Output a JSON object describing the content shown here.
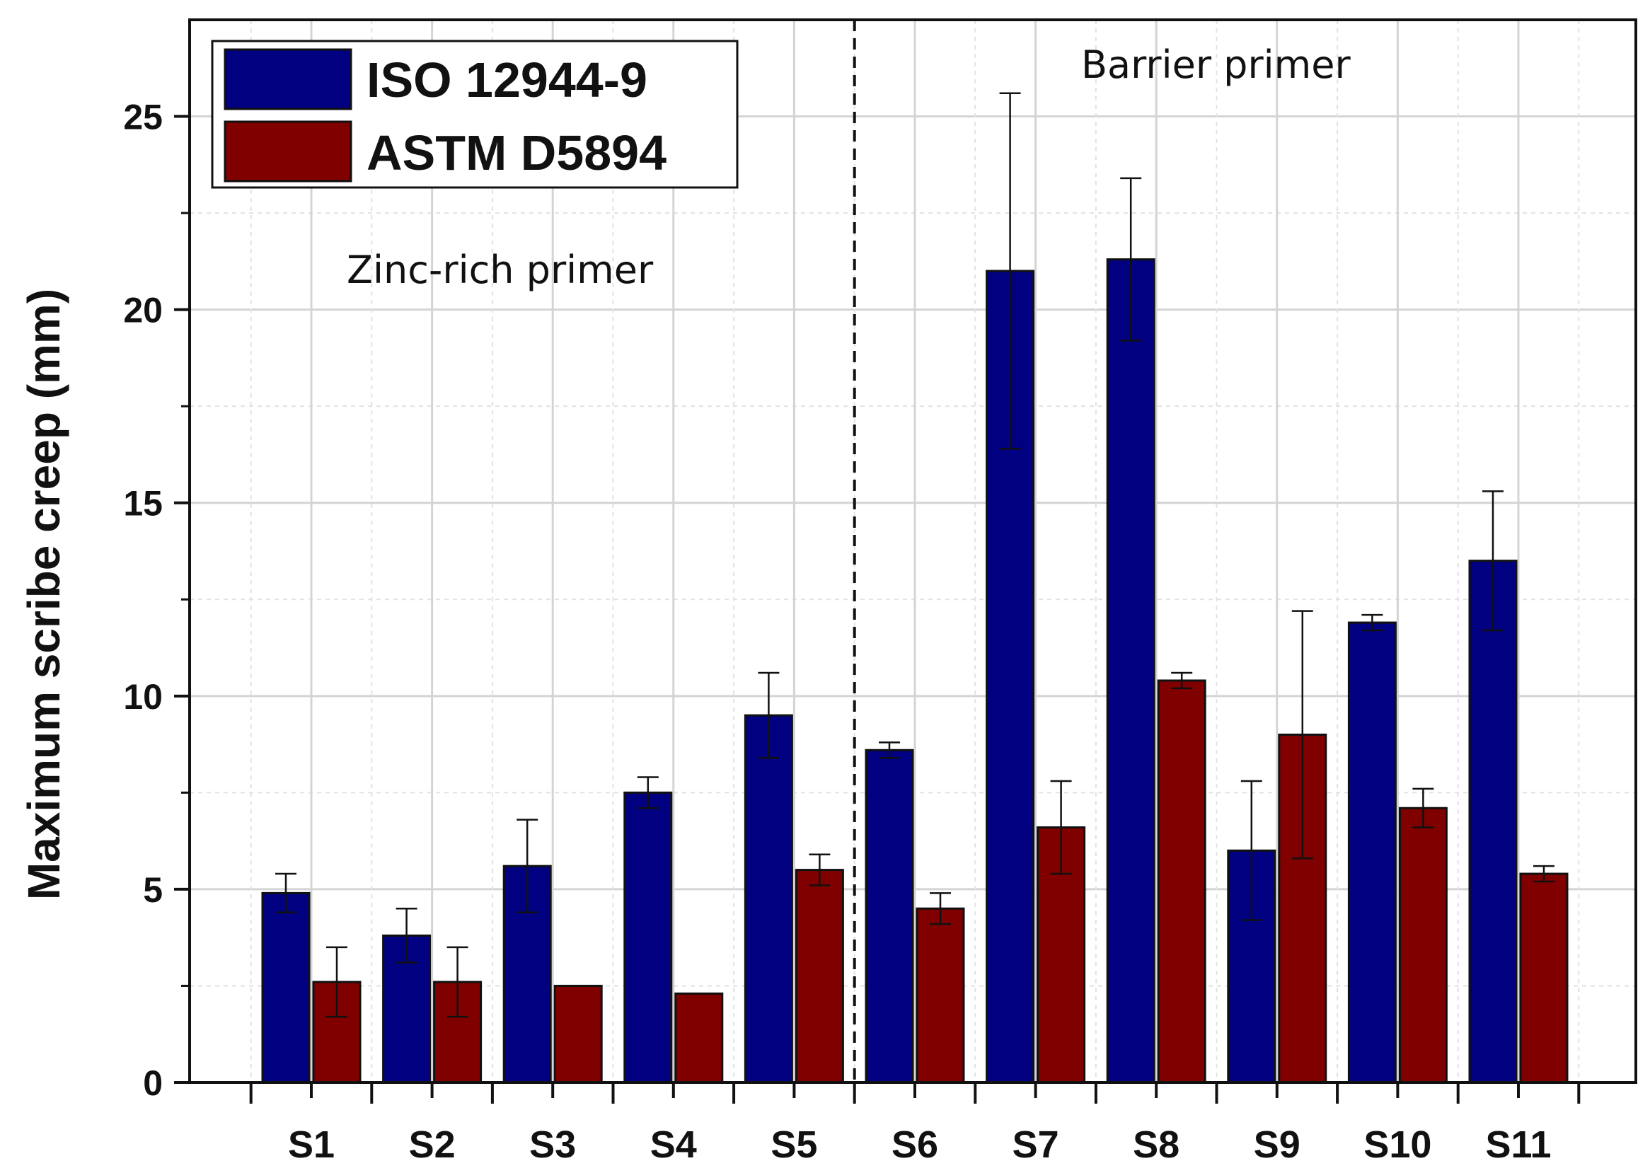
{
  "chart_data": {
    "type": "bar",
    "ylabel": "Maximum scribe creep (mm)",
    "xlabel": "",
    "ylim": [
      0,
      27.5
    ],
    "yticks": [
      "0",
      "5",
      "10",
      "15",
      "20",
      "25"
    ],
    "categories": [
      "S1",
      "S2",
      "S3",
      "S4",
      "S5",
      "S6",
      "S7",
      "S8",
      "S9",
      "S10",
      "S11"
    ],
    "series": [
      {
        "name": "ISO 12944-9",
        "color": "#000080",
        "values": [
          4.9,
          3.8,
          5.6,
          7.5,
          9.5,
          8.6,
          21.0,
          21.3,
          6.0,
          11.9,
          13.5
        ],
        "errors": [
          0.5,
          0.7,
          1.2,
          0.4,
          1.1,
          0.2,
          4.6,
          2.1,
          1.8,
          0.2,
          1.8
        ]
      },
      {
        "name": "ASTM D5894",
        "color": "#800000",
        "values": [
          2.6,
          2.6,
          2.5,
          2.3,
          5.5,
          4.5,
          6.6,
          10.4,
          9.0,
          7.1,
          5.4
        ],
        "errors": [
          0.9,
          0.9,
          0.0,
          0.0,
          0.4,
          0.4,
          1.2,
          0.2,
          3.2,
          0.5,
          0.2
        ]
      }
    ],
    "grid": true,
    "legend_position": "top-left",
    "divider_after_category": "S5",
    "annotations": {
      "left_group": "Zinc-rich primer",
      "right_group": "Barrier primer"
    }
  }
}
